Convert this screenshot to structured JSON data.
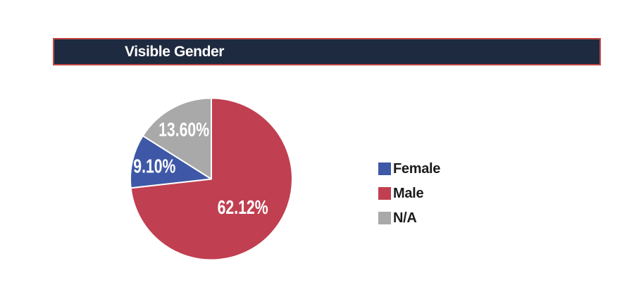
{
  "header": {
    "title": "Visible Gender",
    "background_color": "#1e2a3f",
    "border_color": "#c34a43",
    "text_color": "#ffffff"
  },
  "chart_data": {
    "type": "pie",
    "title": "Visible Gender",
    "direction": "clockwise",
    "start_angle_deg": 0,
    "label_color": "#ffffff",
    "slices": [
      {
        "label": "Male",
        "value": 62.12,
        "text": "62.12%",
        "color": "#c03f50"
      },
      {
        "label": "Female",
        "value": 9.1,
        "text": "9.10%",
        "color": "#3e58a7"
      },
      {
        "label": "N/A",
        "value": 13.6,
        "text": "13.60%",
        "color": "#a9a9a9"
      }
    ],
    "legend_position": "right",
    "legend": [
      {
        "label": "Female",
        "color": "#3e58a7"
      },
      {
        "label": "Male",
        "color": "#c03f50"
      },
      {
        "label": "N/A",
        "color": "#a9a9a9"
      }
    ]
  }
}
